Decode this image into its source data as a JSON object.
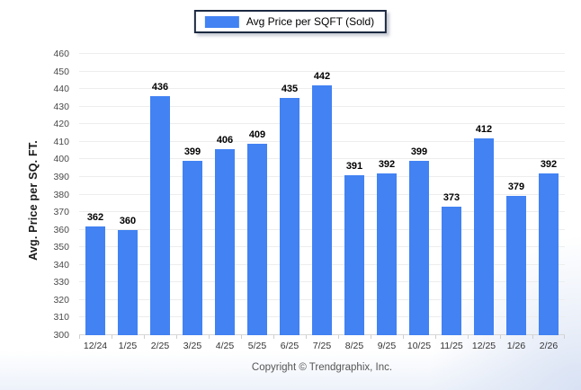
{
  "legend": {
    "label": "Avg Price per SQFT (Sold)"
  },
  "y_axis": {
    "title": "Avg. Price per SQ. FT."
  },
  "footer": {
    "copyright": "Copyright © Trendgraphix, Inc."
  },
  "chart_data": {
    "type": "bar",
    "title": "Avg Price per SQFT (Sold)",
    "categories": [
      "12/24",
      "1/25",
      "2/25",
      "3/25",
      "4/25",
      "5/25",
      "6/25",
      "7/25",
      "8/25",
      "9/25",
      "10/25",
      "11/25",
      "12/25",
      "1/26",
      "2/26"
    ],
    "values": [
      362,
      360,
      436,
      399,
      406,
      409,
      435,
      442,
      391,
      392,
      399,
      373,
      412,
      379,
      392
    ],
    "xlabel": "",
    "ylabel": "Avg. Price per SQ. FT.",
    "ylim": [
      300,
      460
    ],
    "ytick_step": 10,
    "grid": true,
    "legend_position": "top",
    "bar_color": "#4282f3",
    "colors": {
      "gridline": "#ededed",
      "baseline": "#d6d6d6",
      "legend_border": "#1c2940",
      "value_label": "#000000",
      "tick_label": "#4a4a4a",
      "footer_text": "#555555"
    }
  }
}
